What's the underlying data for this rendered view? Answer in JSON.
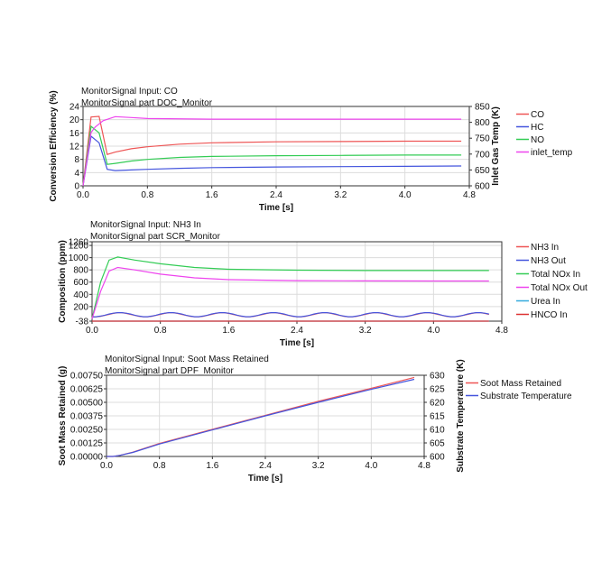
{
  "chart_data": [
    {
      "type": "line",
      "title": "MonitorSignal Input: CO",
      "subtitle": "MonitorSignal part DOC_Monitor",
      "xlabel": "Time [s]",
      "ylabel": "Conversion Efficiency (%)",
      "y2label": "Inlet Gas Temp (K)",
      "xlim": [
        0,
        4.8
      ],
      "ylim": [
        0,
        24
      ],
      "y2lim": [
        600,
        850
      ],
      "xticks": [
        "0.0",
        "0.8",
        "1.6",
        "2.4",
        "3.2",
        "4.0",
        "4.8"
      ],
      "yticks": [
        "0",
        "4",
        "8",
        "12",
        "16",
        "20",
        "24"
      ],
      "y2ticks": [
        "600",
        "650",
        "700",
        "750",
        "800",
        "850"
      ],
      "grid": true,
      "legend_position": "right",
      "series": [
        {
          "name": "CO",
          "axis": "left",
          "color": "#ee5555",
          "x": [
            0,
            0.1,
            0.2,
            0.3,
            0.4,
            0.6,
            0.8,
            1.2,
            1.6,
            2.4,
            3.2,
            4.0,
            4.7
          ],
          "y": [
            0,
            20.8,
            21,
            9.5,
            10.2,
            11.2,
            11.8,
            12.6,
            13.0,
            13.3,
            13.4,
            13.5,
            13.5
          ]
        },
        {
          "name": "HC",
          "axis": "left",
          "color": "#4455dd",
          "x": [
            0,
            0.1,
            0.2,
            0.3,
            0.4,
            0.6,
            0.8,
            1.2,
            1.6,
            2.4,
            3.2,
            4.0,
            4.7
          ],
          "y": [
            0,
            15,
            13,
            5.0,
            4.6,
            4.8,
            5.0,
            5.3,
            5.5,
            5.7,
            5.8,
            5.9,
            6.0
          ]
        },
        {
          "name": "NO",
          "axis": "left",
          "color": "#33cc55",
          "x": [
            0,
            0.1,
            0.2,
            0.3,
            0.4,
            0.6,
            0.8,
            1.2,
            1.6,
            2.4,
            3.2,
            4.0,
            4.7
          ],
          "y": [
            0,
            18,
            16,
            6.5,
            6.8,
            7.5,
            8.0,
            8.6,
            8.9,
            9.1,
            9.2,
            9.3,
            9.3
          ]
        },
        {
          "name": "inlet_temp",
          "axis": "right",
          "color": "#ee44ee",
          "x": [
            0,
            0.1,
            0.15,
            0.25,
            0.4,
            0.6,
            0.8,
            1.6,
            2.4,
            3.2,
            4.0,
            4.7
          ],
          "y": [
            600,
            768,
            785,
            805,
            818,
            815,
            812,
            810,
            810,
            810,
            810,
            810
          ]
        }
      ]
    },
    {
      "type": "line",
      "title": "MonitorSignal Input: NH3 In",
      "subtitle": "MonitorSignal part SCR_Monitor",
      "xlabel": "Time [s]",
      "ylabel": "Composition (ppm)",
      "xlim": [
        0,
        4.8
      ],
      "ylim": [
        -38,
        1260
      ],
      "xticks": [
        "0.0",
        "0.8",
        "1.6",
        "2.4",
        "3.2",
        "4.0",
        "4.8"
      ],
      "yticks": [
        "-38",
        "200",
        "400",
        "600",
        "800",
        "1000",
        "1200",
        "1260"
      ],
      "grid": true,
      "legend_position": "right",
      "series": [
        {
          "name": "NH3 In",
          "color": "#ee5555",
          "x": [
            0.0,
            0.05,
            0.1,
            0.15,
            0.2,
            0.25,
            0.3,
            0.35,
            0.4,
            0.45,
            0.5,
            0.55,
            0.6,
            0.65,
            0.7,
            0.75,
            0.8,
            0.85,
            0.9,
            0.95,
            1.0,
            1.05,
            1.1,
            1.15,
            1.2,
            1.25,
            1.3,
            1.35,
            1.4,
            1.45,
            1.5,
            1.55,
            1.6,
            1.65,
            1.7,
            1.75,
            1.8,
            1.85,
            1.9,
            1.95,
            2.0,
            2.05,
            2.1,
            2.15,
            2.2,
            2.25,
            2.3,
            2.35,
            2.4,
            2.45,
            2.5,
            2.55,
            2.6,
            2.65,
            2.7,
            2.75,
            2.8,
            2.85,
            2.9,
            2.95,
            3.0,
            3.05,
            3.1,
            3.15,
            3.2,
            3.25,
            3.3,
            3.35,
            3.4,
            3.45,
            3.5,
            3.55,
            3.6,
            3.65,
            3.7,
            3.75,
            3.8,
            3.85,
            3.9,
            3.95,
            4.0,
            4.05,
            4.1,
            4.15,
            4.2,
            4.25,
            4.3,
            4.35,
            4.4,
            4.45,
            4.5,
            4.55,
            4.6,
            4.65
          ],
          "y": [
            30,
            33,
            42,
            56,
            73,
            89,
            99,
            99,
            89,
            73,
            56,
            42,
            33,
            33,
            42,
            56,
            73,
            89,
            99,
            99,
            89,
            73,
            56,
            42,
            33,
            33,
            42,
            56,
            73,
            89,
            99,
            99,
            89,
            73,
            56,
            42,
            33,
            33,
            42,
            56,
            73,
            89,
            99,
            99,
            89,
            73,
            56,
            42,
            33,
            33,
            42,
            56,
            73,
            89,
            99,
            99,
            89,
            73,
            56,
            42,
            33,
            33,
            42,
            56,
            73,
            89,
            99,
            99,
            89,
            73,
            56,
            42,
            33,
            33,
            42,
            56,
            73,
            89,
            99,
            99,
            89,
            73,
            56,
            42,
            33,
            33,
            42,
            56,
            73,
            89,
            99,
            99,
            89,
            73
          ]
        },
        {
          "name": "NH3 Out",
          "color": "#4455dd",
          "x": [
            0.0,
            0.05,
            0.1,
            0.15,
            0.2,
            0.25,
            0.3,
            0.35,
            0.4,
            0.45,
            0.5,
            0.55,
            0.6,
            0.65,
            0.7,
            0.75,
            0.8,
            0.85,
            0.9,
            0.95,
            1.0,
            1.05,
            1.1,
            1.15,
            1.2,
            1.25,
            1.3,
            1.35,
            1.4,
            1.45,
            1.5,
            1.55,
            1.6,
            1.65,
            1.7,
            1.75,
            1.8,
            1.85,
            1.9,
            1.95,
            2.0,
            2.05,
            2.1,
            2.15,
            2.2,
            2.25,
            2.3,
            2.35,
            2.4,
            2.45,
            2.5,
            2.55,
            2.6,
            2.65,
            2.7,
            2.75,
            2.8,
            2.85,
            2.9,
            2.95,
            3.0,
            3.05,
            3.1,
            3.15,
            3.2,
            3.25,
            3.3,
            3.35,
            3.4,
            3.45,
            3.5,
            3.55,
            3.6,
            3.65,
            3.7,
            3.75,
            3.8,
            3.85,
            3.9,
            3.95,
            4.0,
            4.05,
            4.1,
            4.15,
            4.2,
            4.25,
            4.3,
            4.35,
            4.4,
            4.45,
            4.5,
            4.55,
            4.6,
            4.65
          ],
          "y": [
            30,
            34,
            45,
            60,
            78,
            92,
            100,
            100,
            92,
            78,
            60,
            45,
            34,
            34,
            45,
            60,
            78,
            92,
            100,
            100,
            92,
            78,
            60,
            45,
            34,
            34,
            45,
            60,
            78,
            92,
            100,
            100,
            92,
            78,
            60,
            45,
            34,
            34,
            45,
            60,
            78,
            92,
            100,
            100,
            92,
            78,
            60,
            45,
            34,
            34,
            45,
            60,
            78,
            92,
            100,
            100,
            92,
            78,
            60,
            45,
            34,
            34,
            45,
            60,
            78,
            92,
            100,
            100,
            92,
            78,
            60,
            45,
            34,
            34,
            45,
            60,
            78,
            92,
            100,
            100,
            92,
            78,
            60,
            45,
            34,
            34,
            45,
            60,
            78,
            92,
            100,
            100,
            92,
            78
          ]
        },
        {
          "name": "Total NOx In",
          "color": "#33cc55",
          "x": [
            0,
            0.1,
            0.2,
            0.3,
            0.5,
            0.8,
            1.2,
            1.6,
            2.4,
            3.2,
            4.0,
            4.65
          ],
          "y": [
            0,
            600,
            960,
            1010,
            960,
            900,
            840,
            810,
            795,
            790,
            790,
            790
          ]
        },
        {
          "name": "Total NOx Out",
          "color": "#ee44ee",
          "x": [
            0,
            0.1,
            0.2,
            0.3,
            0.5,
            0.8,
            1.2,
            1.6,
            2.4,
            3.2,
            4.0,
            4.65
          ],
          "y": [
            0,
            450,
            780,
            840,
            800,
            730,
            670,
            640,
            625,
            620,
            618,
            618
          ]
        },
        {
          "name": "Urea In",
          "color": "#33aadd",
          "x": [
            0,
            4.65
          ],
          "y": [
            -38,
            -38
          ]
        },
        {
          "name": "HNCO In",
          "color": "#dd3333",
          "x": [
            0,
            4.65
          ],
          "y": [
            -38,
            -38
          ]
        }
      ]
    },
    {
      "type": "line",
      "title": "MonitorSignal Input: Soot Mass Retained",
      "subtitle": "MonitorSignal part DPF_Monitor",
      "xlabel": "Time [s]",
      "ylabel": "Soot Mass Retained (g)",
      "y2label": "Substrate Temperature (K)",
      "xlim": [
        0,
        4.8
      ],
      "ylim": [
        0,
        0.0075
      ],
      "y2lim": [
        600,
        630
      ],
      "xticks": [
        "0.0",
        "0.8",
        "1.6",
        "2.4",
        "3.2",
        "4.0",
        "4.8"
      ],
      "yticks": [
        "0.00000",
        "0.00125",
        "0.00250",
        "0.00375",
        "0.00500",
        "0.00625",
        "0.00750"
      ],
      "y2ticks": [
        "600",
        "605",
        "610",
        "615",
        "620",
        "625",
        "630"
      ],
      "grid": true,
      "legend_position": "right",
      "series": [
        {
          "name": "Soot Mass Retained",
          "axis": "left",
          "color": "#ee5555",
          "x": [
            0,
            0.1,
            0.2,
            0.4,
            0.8,
            1.6,
            2.4,
            3.2,
            4.0,
            4.65
          ],
          "y": [
            0,
            0,
            0.0001,
            0.0004,
            0.0012,
            0.0025,
            0.0038,
            0.0051,
            0.0063,
            0.0073
          ]
        },
        {
          "name": "Substrate Temperature",
          "axis": "right",
          "color": "#4455dd",
          "x": [
            0,
            0.1,
            0.2,
            0.4,
            0.8,
            1.6,
            2.4,
            3.2,
            4.0,
            4.65
          ],
          "y": [
            600,
            600,
            600.4,
            601.5,
            604.6,
            609.8,
            615,
            620,
            624.8,
            628.5
          ]
        }
      ]
    }
  ]
}
